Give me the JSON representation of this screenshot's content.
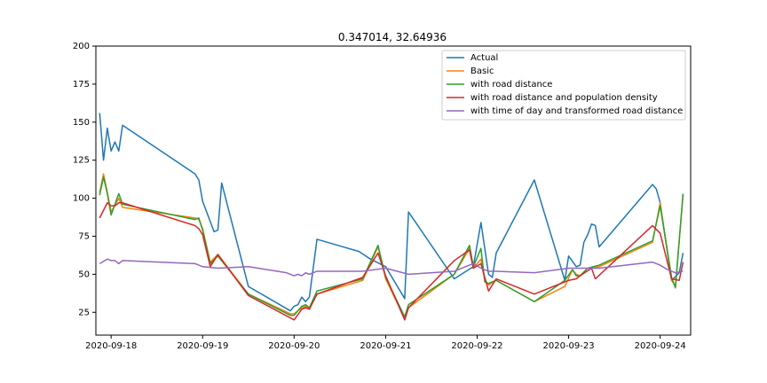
{
  "chart_data": {
    "type": "line",
    "title": "0.347014, 32.64936",
    "xlabel": "",
    "ylabel": "",
    "x_range": [
      "2020-09-17T20:00",
      "2020-09-24T08:00"
    ],
    "ylim": [
      10,
      200
    ],
    "y_ticks": [
      25,
      50,
      75,
      100,
      125,
      150,
      175,
      200
    ],
    "x_ticks": [
      "2020-09-18",
      "2020-09-19",
      "2020-09-20",
      "2020-09-21",
      "2020-09-22",
      "2020-09-23",
      "2020-09-24"
    ],
    "legend_position": "top-right",
    "grid": false,
    "series": [
      {
        "name": "Actual",
        "color": "#1f77b4",
        "points": [
          [
            "2020-09-17T21:00",
            156
          ],
          [
            "2020-09-17T22:00",
            125
          ],
          [
            "2020-09-17T23:00",
            146
          ],
          [
            "2020-09-18T00:00",
            131
          ],
          [
            "2020-09-18T01:00",
            137
          ],
          [
            "2020-09-18T02:00",
            131
          ],
          [
            "2020-09-18T03:00",
            148
          ],
          [
            "2020-09-18T22:00",
            116
          ],
          [
            "2020-09-18T23:00",
            112
          ],
          [
            "2020-09-19T00:00",
            98
          ],
          [
            "2020-09-19T03:00",
            78
          ],
          [
            "2020-09-19T04:00",
            79
          ],
          [
            "2020-09-19T05:00",
            110
          ],
          [
            "2020-09-19T12:00",
            42
          ],
          [
            "2020-09-19T23:00",
            26
          ],
          [
            "2020-09-20T00:00",
            29
          ],
          [
            "2020-09-20T01:00",
            30
          ],
          [
            "2020-09-20T02:00",
            35
          ],
          [
            "2020-09-20T03:00",
            32
          ],
          [
            "2020-09-20T04:00",
            35
          ],
          [
            "2020-09-20T06:00",
            73
          ],
          [
            "2020-09-20T17:00",
            65
          ],
          [
            "2020-09-20T20:00",
            60
          ],
          [
            "2020-09-21T00:00",
            55
          ],
          [
            "2020-09-21T05:00",
            34
          ],
          [
            "2020-09-21T06:00",
            91
          ],
          [
            "2020-09-21T18:00",
            47
          ],
          [
            "2020-09-21T23:00",
            55
          ],
          [
            "2020-09-22T01:00",
            84
          ],
          [
            "2020-09-22T02:00",
            67
          ],
          [
            "2020-09-22T03:00",
            50
          ],
          [
            "2020-09-22T04:00",
            48
          ],
          [
            "2020-09-22T05:00",
            64
          ],
          [
            "2020-09-22T15:00",
            112
          ],
          [
            "2020-09-22T23:00",
            46
          ],
          [
            "2020-09-23T00:00",
            62
          ],
          [
            "2020-09-23T02:00",
            55
          ],
          [
            "2020-09-23T03:00",
            56
          ],
          [
            "2020-09-23T04:00",
            71
          ],
          [
            "2020-09-23T05:00",
            76
          ],
          [
            "2020-09-23T06:00",
            83
          ],
          [
            "2020-09-23T07:00",
            82
          ],
          [
            "2020-09-23T08:00",
            68
          ],
          [
            "2020-09-23T22:00",
            109
          ],
          [
            "2020-09-23T23:00",
            106
          ],
          [
            "2020-09-24T00:00",
            97
          ],
          [
            "2020-09-24T03:00",
            46
          ],
          [
            "2020-09-24T05:00",
            51
          ],
          [
            "2020-09-24T06:00",
            64
          ]
        ]
      },
      {
        "name": "Basic",
        "color": "#ff7f0e",
        "points": [
          [
            "2020-09-17T21:00",
            104
          ],
          [
            "2020-09-17T22:00",
            116
          ],
          [
            "2020-09-17T23:00",
            104
          ],
          [
            "2020-09-18T00:00",
            91
          ],
          [
            "2020-09-18T02:00",
            100
          ],
          [
            "2020-09-18T03:00",
            94
          ],
          [
            "2020-09-18T22:00",
            87
          ],
          [
            "2020-09-18T23:00",
            86
          ],
          [
            "2020-09-19T00:00",
            80
          ],
          [
            "2020-09-19T02:00",
            58
          ],
          [
            "2020-09-19T04:00",
            63
          ],
          [
            "2020-09-19T12:00",
            37
          ],
          [
            "2020-09-19T23:00",
            24
          ],
          [
            "2020-09-20T00:00",
            24
          ],
          [
            "2020-09-20T02:00",
            28
          ],
          [
            "2020-09-20T03:00",
            29
          ],
          [
            "2020-09-20T04:00",
            28
          ],
          [
            "2020-09-20T06:00",
            37
          ],
          [
            "2020-09-20T18:00",
            46
          ],
          [
            "2020-09-20T22:00",
            68
          ],
          [
            "2020-09-21T00:00",
            47
          ],
          [
            "2020-09-21T05:00",
            21
          ],
          [
            "2020-09-21T06:00",
            28
          ],
          [
            "2020-09-21T18:00",
            50
          ],
          [
            "2020-09-21T22:00",
            67
          ],
          [
            "2020-09-21T23:00",
            54
          ],
          [
            "2020-09-22T01:00",
            60
          ],
          [
            "2020-09-22T02:00",
            46
          ],
          [
            "2020-09-22T03:00",
            43
          ],
          [
            "2020-09-22T05:00",
            46
          ],
          [
            "2020-09-22T15:00",
            32
          ],
          [
            "2020-09-22T23:00",
            42
          ],
          [
            "2020-09-23T01:00",
            53
          ],
          [
            "2020-09-23T02:00",
            50
          ],
          [
            "2020-09-23T03:00",
            49
          ],
          [
            "2020-09-23T05:00",
            54
          ],
          [
            "2020-09-23T08:00",
            55
          ],
          [
            "2020-09-23T22:00",
            71
          ],
          [
            "2020-09-24T00:00",
            97
          ],
          [
            "2020-09-24T03:00",
            46
          ],
          [
            "2020-09-24T04:00",
            42
          ],
          [
            "2020-09-24T06:00",
            102
          ]
        ]
      },
      {
        "name": "with road distance",
        "color": "#2ca02c",
        "points": [
          [
            "2020-09-17T21:00",
            102
          ],
          [
            "2020-09-17T22:00",
            114
          ],
          [
            "2020-09-17T23:00",
            103
          ],
          [
            "2020-09-18T00:00",
            89
          ],
          [
            "2020-09-18T02:00",
            103
          ],
          [
            "2020-09-18T03:00",
            96
          ],
          [
            "2020-09-18T22:00",
            86
          ],
          [
            "2020-09-18T23:00",
            87
          ],
          [
            "2020-09-19T00:00",
            79
          ],
          [
            "2020-09-19T02:00",
            57
          ],
          [
            "2020-09-19T04:00",
            62
          ],
          [
            "2020-09-19T12:00",
            37
          ],
          [
            "2020-09-19T23:00",
            23
          ],
          [
            "2020-09-20T00:00",
            23
          ],
          [
            "2020-09-20T02:00",
            29
          ],
          [
            "2020-09-20T03:00",
            30
          ],
          [
            "2020-09-20T04:00",
            28
          ],
          [
            "2020-09-20T06:00",
            39
          ],
          [
            "2020-09-20T18:00",
            47
          ],
          [
            "2020-09-20T22:00",
            69
          ],
          [
            "2020-09-21T00:00",
            48
          ],
          [
            "2020-09-21T05:00",
            22
          ],
          [
            "2020-09-21T06:00",
            30
          ],
          [
            "2020-09-21T18:00",
            50
          ],
          [
            "2020-09-21T22:00",
            69
          ],
          [
            "2020-09-21T23:00",
            55
          ],
          [
            "2020-09-22T01:00",
            67
          ],
          [
            "2020-09-22T02:00",
            45
          ],
          [
            "2020-09-22T03:00",
            44
          ],
          [
            "2020-09-22T05:00",
            46
          ],
          [
            "2020-09-22T15:00",
            32
          ],
          [
            "2020-09-22T23:00",
            46
          ],
          [
            "2020-09-23T01:00",
            53
          ],
          [
            "2020-09-23T02:00",
            49
          ],
          [
            "2020-09-23T03:00",
            49
          ],
          [
            "2020-09-23T05:00",
            54
          ],
          [
            "2020-09-23T08:00",
            56
          ],
          [
            "2020-09-23T22:00",
            72
          ],
          [
            "2020-09-24T00:00",
            95
          ],
          [
            "2020-09-24T03:00",
            48
          ],
          [
            "2020-09-24T04:00",
            41
          ],
          [
            "2020-09-24T06:00",
            103
          ]
        ]
      },
      {
        "name": "with road distance and population density",
        "color": "#d62728",
        "points": [
          [
            "2020-09-17T21:00",
            87
          ],
          [
            "2020-09-17T23:00",
            97
          ],
          [
            "2020-09-18T00:00",
            95
          ],
          [
            "2020-09-18T01:00",
            95
          ],
          [
            "2020-09-18T02:00",
            97
          ],
          [
            "2020-09-18T03:00",
            97
          ],
          [
            "2020-09-18T22:00",
            82
          ],
          [
            "2020-09-18T23:00",
            80
          ],
          [
            "2020-09-19T00:00",
            76
          ],
          [
            "2020-09-19T02:00",
            55
          ],
          [
            "2020-09-19T04:00",
            63
          ],
          [
            "2020-09-19T12:00",
            36
          ],
          [
            "2020-09-20T00:00",
            20
          ],
          [
            "2020-09-20T02:00",
            27
          ],
          [
            "2020-09-20T03:00",
            28
          ],
          [
            "2020-09-20T04:00",
            27
          ],
          [
            "2020-09-20T06:00",
            37
          ],
          [
            "2020-09-20T18:00",
            48
          ],
          [
            "2020-09-20T22:00",
            64
          ],
          [
            "2020-09-21T00:00",
            49
          ],
          [
            "2020-09-21T05:00",
            20
          ],
          [
            "2020-09-21T06:00",
            28
          ],
          [
            "2020-09-21T18:00",
            59
          ],
          [
            "2020-09-21T22:00",
            66
          ],
          [
            "2020-09-21T23:00",
            54
          ],
          [
            "2020-09-22T01:00",
            57
          ],
          [
            "2020-09-22T03:00",
            39
          ],
          [
            "2020-09-22T05:00",
            47
          ],
          [
            "2020-09-22T15:00",
            37
          ],
          [
            "2020-09-23T00:00",
            46
          ],
          [
            "2020-09-23T02:00",
            47
          ],
          [
            "2020-09-23T03:00",
            49
          ],
          [
            "2020-09-23T06:00",
            54
          ],
          [
            "2020-09-23T07:00",
            47
          ],
          [
            "2020-09-23T22:00",
            82
          ],
          [
            "2020-09-24T00:00",
            77
          ],
          [
            "2020-09-24T03:00",
            47
          ],
          [
            "2020-09-24T05:00",
            46
          ],
          [
            "2020-09-24T06:00",
            58
          ]
        ]
      },
      {
        "name": "with time of day and transformed road distance",
        "color": "#9467bd",
        "points": [
          [
            "2020-09-17T21:00",
            57
          ],
          [
            "2020-09-17T23:00",
            60
          ],
          [
            "2020-09-18T00:00",
            59
          ],
          [
            "2020-09-18T01:00",
            59
          ],
          [
            "2020-09-18T02:00",
            57
          ],
          [
            "2020-09-18T03:00",
            59
          ],
          [
            "2020-09-18T22:00",
            57
          ],
          [
            "2020-09-19T00:00",
            55
          ],
          [
            "2020-09-19T04:00",
            54
          ],
          [
            "2020-09-19T12:00",
            55
          ],
          [
            "2020-09-19T22:00",
            51
          ],
          [
            "2020-09-20T00:00",
            49
          ],
          [
            "2020-09-20T01:00",
            50
          ],
          [
            "2020-09-20T02:00",
            49
          ],
          [
            "2020-09-20T03:00",
            51
          ],
          [
            "2020-09-20T04:00",
            50
          ],
          [
            "2020-09-20T06:00",
            52
          ],
          [
            "2020-09-20T18:00",
            52
          ],
          [
            "2020-09-21T00:00",
            54
          ],
          [
            "2020-09-21T06:00",
            50
          ],
          [
            "2020-09-21T18:00",
            52
          ],
          [
            "2020-09-21T23:00",
            57
          ],
          [
            "2020-09-22T01:00",
            54
          ],
          [
            "2020-09-22T03:00",
            52
          ],
          [
            "2020-09-22T05:00",
            52
          ],
          [
            "2020-09-22T15:00",
            51
          ],
          [
            "2020-09-23T00:00",
            54
          ],
          [
            "2020-09-23T08:00",
            54
          ],
          [
            "2020-09-23T22:00",
            58
          ],
          [
            "2020-09-24T00:00",
            56
          ],
          [
            "2020-09-24T02:00",
            53
          ],
          [
            "2020-09-24T04:00",
            51
          ],
          [
            "2020-09-24T06:00",
            52
          ]
        ]
      }
    ]
  }
}
